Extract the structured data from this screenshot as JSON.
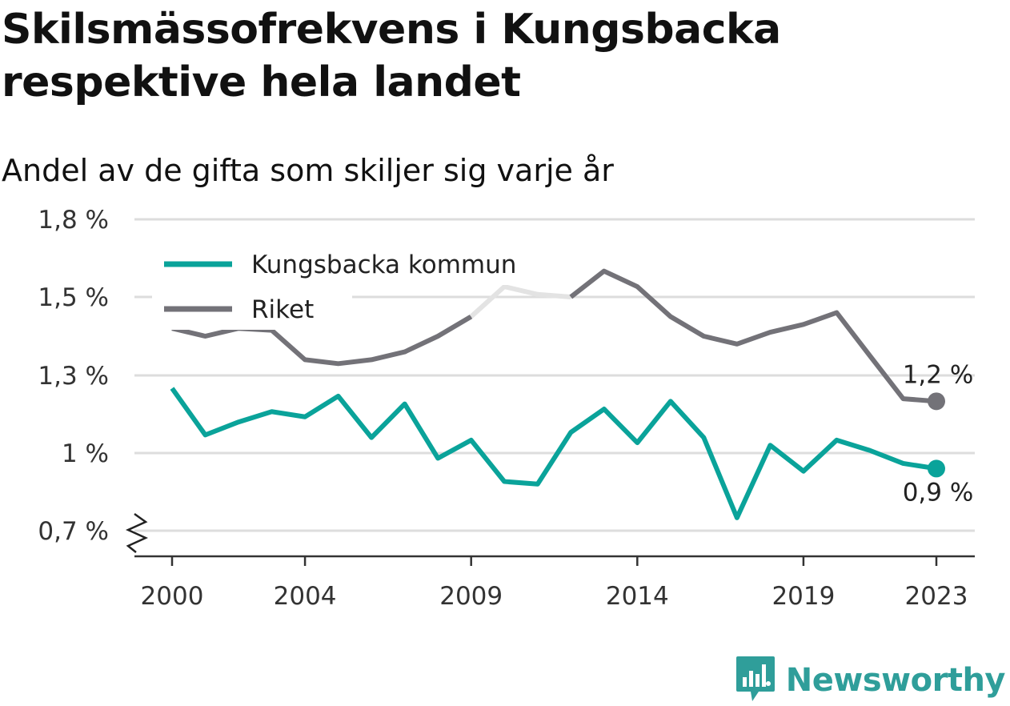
{
  "title": "Skilsmässofrekvens i Kungsbacka respektive hela landet",
  "subtitle": "Andel av de gifta som skiljer sig varje år",
  "brand": {
    "name": "Newsworthy",
    "color": "#2f9e9a",
    "icon": "chart-bubble-icon"
  },
  "chart_data": {
    "type": "line",
    "x": [
      2000,
      2001,
      2002,
      2003,
      2004,
      2005,
      2006,
      2007,
      2008,
      2009,
      2010,
      2011,
      2012,
      2013,
      2014,
      2015,
      2016,
      2017,
      2018,
      2019,
      2020,
      2021,
      2022,
      2023
    ],
    "x_ticks": [
      2000,
      2004,
      2009,
      2014,
      2019,
      2023
    ],
    "x_tick_labels": [
      "2000",
      "2004",
      "2009",
      "2014",
      "2019",
      "2023"
    ],
    "y_ticks": [
      0.7,
      1.0,
      1.3,
      1.5,
      1.8
    ],
    "y_tick_labels": [
      "0,7 %",
      "1 %",
      "1,3 %",
      "1,5 %",
      "1,8 %"
    ],
    "axis_break": true,
    "grid": true,
    "legend_position": "top-left",
    "series": [
      {
        "name": "Kungsbacka kommun",
        "color": "#0aa39a",
        "values": [
          1.25,
          1.07,
          1.12,
          1.16,
          1.14,
          1.22,
          1.06,
          1.19,
          0.98,
          1.05,
          0.89,
          0.88,
          1.08,
          1.17,
          1.04,
          1.2,
          1.06,
          0.75,
          1.03,
          0.93,
          1.05,
          1.01,
          0.96,
          0.94
        ],
        "end_label": "0,9 %"
      },
      {
        "name": "Riket",
        "color": "#737278",
        "values": [
          1.42,
          1.4,
          1.42,
          1.415,
          1.34,
          1.33,
          1.34,
          1.36,
          1.4,
          1.45,
          1.54,
          1.51,
          1.5,
          1.6,
          1.54,
          1.45,
          1.4,
          1.38,
          1.41,
          1.43,
          1.46,
          1.35,
          1.21,
          1.2
        ],
        "highlight_dim_range": [
          2009,
          2012
        ],
        "dim_color": "#e3e3e3",
        "end_label": "1,2 %"
      }
    ]
  }
}
